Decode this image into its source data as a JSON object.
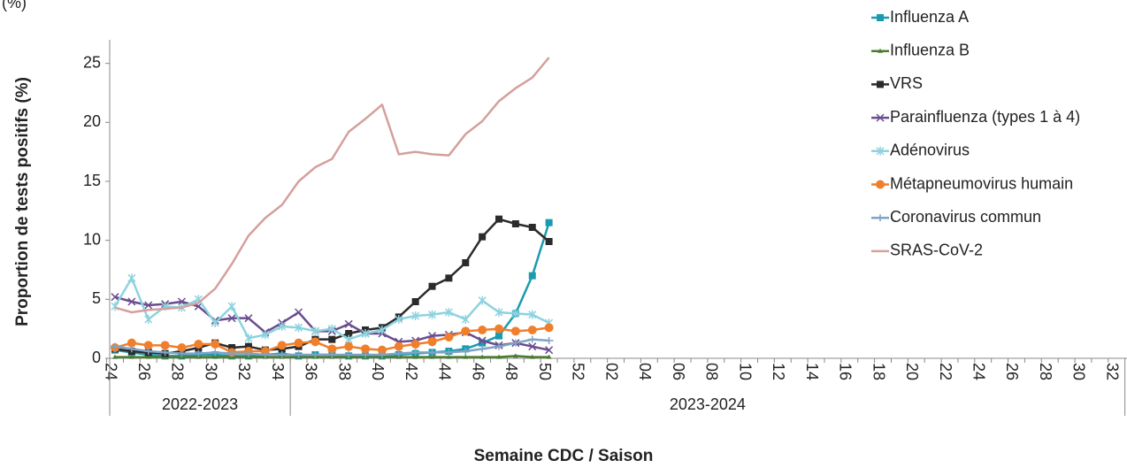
{
  "chart_data": {
    "type": "line",
    "subtitle": "(%)",
    "y_label": "Proportion de tests positifs (%)",
    "x_label": "Semaine CDC / Saison",
    "categories": [
      "24",
      null,
      "26",
      null,
      "28",
      null,
      "30",
      null,
      "32",
      null,
      "34",
      null,
      "36",
      null,
      "38",
      null,
      "40",
      null,
      "42",
      null,
      "44",
      null,
      "46",
      null,
      "48",
      null,
      "50",
      null,
      "52",
      null,
      "02",
      null,
      "04",
      null,
      "06",
      null,
      "08",
      null,
      "10",
      null,
      "12",
      null,
      "14",
      null,
      "16",
      null,
      "18",
      null,
      "20",
      null,
      "22",
      null,
      "24",
      null,
      "26",
      null,
      "28",
      null,
      "30",
      null,
      "32"
    ],
    "seasons": [
      {
        "label": "2022-2023",
        "span": 11
      },
      {
        "label": "2023-2024",
        "span": 50
      }
    ],
    "ylim": [
      0,
      27
    ],
    "yticks": [
      0,
      5,
      10,
      15,
      20,
      25
    ],
    "series": [
      {
        "name": "Influenza A",
        "color": "#1a9bb0",
        "marker": "square",
        "values": [
          0.7,
          0.5,
          0.3,
          0.2,
          0.2,
          0.3,
          0.3,
          0.2,
          0.2,
          0.3,
          0.4,
          0.2,
          0.3,
          0.3,
          0.2,
          0.2,
          0.2,
          0.3,
          0.4,
          0.5,
          0.6,
          0.8,
          1.3,
          1.9,
          3.8,
          7.0,
          11.5,
          null,
          null,
          null,
          null,
          null,
          null,
          null,
          null,
          null,
          null,
          null,
          null,
          null,
          null,
          null,
          null,
          null,
          null,
          null,
          null,
          null,
          null,
          null,
          null,
          null,
          null,
          null,
          null,
          null,
          null,
          null,
          null,
          null,
          null
        ]
      },
      {
        "name": "Influenza B",
        "color": "#4a7c2e",
        "marker": "triangle",
        "values": [
          0.1,
          0.1,
          0.1,
          0.1,
          0.1,
          0.1,
          0.1,
          0.1,
          0.1,
          0.1,
          0.1,
          0.1,
          0.1,
          0.1,
          0.1,
          0.1,
          0.1,
          0.1,
          0.1,
          0.1,
          0.1,
          0.1,
          0.1,
          0.1,
          0.2,
          0.1,
          0.1,
          null,
          null,
          null,
          null,
          null,
          null,
          null,
          null,
          null,
          null,
          null,
          null,
          null,
          null,
          null,
          null,
          null,
          null,
          null,
          null,
          null,
          null,
          null,
          null,
          null,
          null,
          null,
          null,
          null,
          null,
          null,
          null,
          null,
          null
        ]
      },
      {
        "name": "VRS",
        "color": "#2b2b2b",
        "marker": "square",
        "values": [
          0.8,
          0.6,
          0.5,
          0.4,
          0.6,
          0.9,
          1.3,
          0.9,
          1.0,
          0.7,
          0.8,
          1.0,
          1.6,
          1.6,
          2.1,
          2.4,
          2.6,
          3.5,
          4.8,
          6.1,
          6.8,
          8.1,
          10.3,
          11.8,
          11.4,
          11.1,
          9.9,
          null,
          null,
          null,
          null,
          null,
          null,
          null,
          null,
          null,
          null,
          null,
          null,
          null,
          null,
          null,
          null,
          null,
          null,
          null,
          null,
          null,
          null,
          null,
          null,
          null,
          null,
          null,
          null,
          null,
          null,
          null,
          null,
          null,
          null
        ]
      },
      {
        "name": "Parainfluenza (types 1 à 4)",
        "color": "#6a4c8f",
        "marker": "x",
        "values": [
          5.2,
          4.8,
          4.5,
          4.6,
          4.8,
          4.4,
          3.2,
          3.4,
          3.4,
          2.2,
          3.0,
          3.9,
          2.3,
          2.3,
          2.9,
          2.1,
          2.1,
          1.4,
          1.5,
          1.9,
          2.0,
          2.2,
          1.5,
          1.1,
          1.3,
          1.0,
          0.7,
          null,
          null,
          null,
          null,
          null,
          null,
          null,
          null,
          null,
          null,
          null,
          null,
          null,
          null,
          null,
          null,
          null,
          null,
          null,
          null,
          null,
          null,
          null,
          null,
          null,
          null,
          null,
          null,
          null,
          null,
          null,
          null,
          null,
          null
        ]
      },
      {
        "name": "Adénovirus",
        "color": "#8dd3df",
        "marker": "star",
        "values": [
          4.4,
          6.8,
          3.3,
          4.4,
          4.3,
          5.0,
          3.0,
          4.4,
          1.7,
          2.0,
          2.7,
          2.6,
          2.3,
          2.5,
          1.6,
          2.1,
          2.4,
          3.3,
          3.6,
          3.7,
          3.9,
          3.3,
          4.9,
          3.9,
          3.8,
          3.7,
          3.0,
          null,
          null,
          null,
          null,
          null,
          null,
          null,
          null,
          null,
          null,
          null,
          null,
          null,
          null,
          null,
          null,
          null,
          null,
          null,
          null,
          null,
          null,
          null,
          null,
          null,
          null,
          null,
          null,
          null,
          null,
          null,
          null,
          null,
          null
        ]
      },
      {
        "name": "Métapneumovirus humain",
        "color": "#f07f2b",
        "marker": "circle",
        "values": [
          0.9,
          1.3,
          1.1,
          1.1,
          0.9,
          1.2,
          1.2,
          0.5,
          0.6,
          0.6,
          1.1,
          1.3,
          1.4,
          0.8,
          1.0,
          0.8,
          0.7,
          1.0,
          1.2,
          1.4,
          1.8,
          2.3,
          2.4,
          2.5,
          2.3,
          2.4,
          2.6,
          null,
          null,
          null,
          null,
          null,
          null,
          null,
          null,
          null,
          null,
          null,
          null,
          null,
          null,
          null,
          null,
          null,
          null,
          null,
          null,
          null,
          null,
          null,
          null,
          null,
          null,
          null,
          null,
          null,
          null,
          null,
          null,
          null,
          null
        ]
      },
      {
        "name": "Coronavirus commun",
        "color": "#7fa3c4",
        "marker": "plus",
        "values": [
          1.0,
          0.8,
          0.6,
          0.5,
          0.4,
          0.4,
          0.5,
          0.4,
          0.4,
          0.3,
          0.3,
          0.3,
          0.3,
          0.3,
          0.3,
          0.3,
          0.3,
          0.4,
          0.5,
          0.5,
          0.5,
          0.6,
          0.8,
          1.0,
          1.3,
          1.6,
          1.5,
          null,
          null,
          null,
          null,
          null,
          null,
          null,
          null,
          null,
          null,
          null,
          null,
          null,
          null,
          null,
          null,
          null,
          null,
          null,
          null,
          null,
          null,
          null,
          null,
          null,
          null,
          null,
          null,
          null,
          null,
          null,
          null,
          null,
          null
        ]
      },
      {
        "name": "SRAS-CoV-2",
        "color": "#d4a09c",
        "marker": "none",
        "values": [
          4.3,
          3.9,
          4.1,
          4.2,
          4.3,
          4.7,
          5.9,
          8.0,
          10.4,
          11.9,
          13.0,
          15.0,
          16.2,
          16.9,
          19.2,
          20.3,
          21.5,
          17.3,
          17.5,
          17.3,
          17.2,
          19.0,
          20.1,
          21.8,
          22.9,
          23.8,
          25.5,
          null,
          null,
          null,
          null,
          null,
          null,
          null,
          null,
          null,
          null,
          null,
          null,
          null,
          null,
          null,
          null,
          null,
          null,
          null,
          null,
          null,
          null,
          null,
          null,
          null,
          null,
          null,
          null,
          null,
          null,
          null,
          null,
          null,
          null
        ]
      }
    ]
  }
}
